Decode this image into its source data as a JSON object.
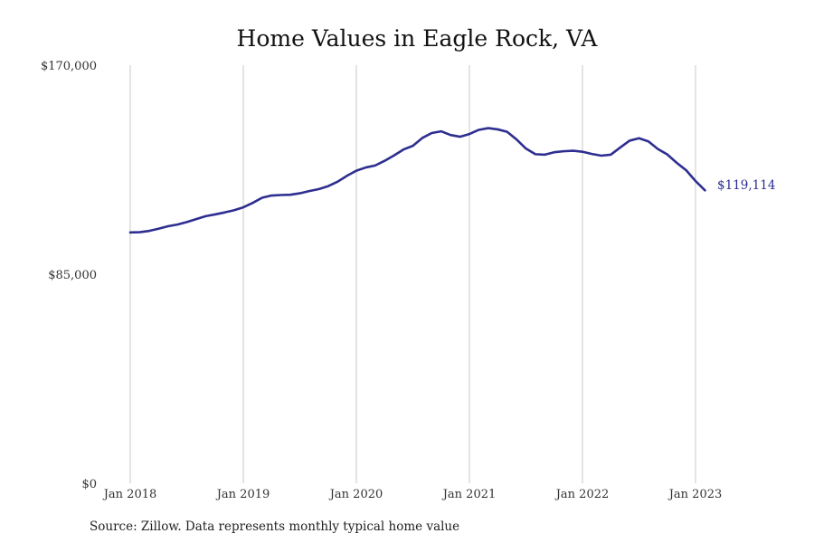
{
  "chart_data": {
    "type": "line",
    "title": "Home Values in Eagle Rock, VA",
    "xlabel": "",
    "ylabel": "",
    "x_ticks": [
      "Jan 2018",
      "Jan 2019",
      "Jan 2020",
      "Jan 2021",
      "Jan 2022",
      "Jan 2023"
    ],
    "y_ticks": [
      "$0",
      "$85,000",
      "$170,000"
    ],
    "ylim": [
      0,
      170000
    ],
    "xlim": [
      "2018-01",
      "2023-02"
    ],
    "grid": "vertical lines at January of each year",
    "series": [
      {
        "color": "#2e2e91",
        "x": [
          "2018-01",
          "2018-02",
          "2018-03",
          "2018-04",
          "2018-05",
          "2018-06",
          "2018-07",
          "2018-08",
          "2018-09",
          "2018-10",
          "2018-11",
          "2018-12",
          "2019-01",
          "2019-02",
          "2019-03",
          "2019-04",
          "2019-05",
          "2019-06",
          "2019-07",
          "2019-08",
          "2019-09",
          "2019-10",
          "2019-11",
          "2019-12",
          "2020-01",
          "2020-02",
          "2020-03",
          "2020-04",
          "2020-05",
          "2020-06",
          "2020-07",
          "2020-08",
          "2020-09",
          "2020-10",
          "2020-11",
          "2020-12",
          "2021-01",
          "2021-02",
          "2021-03",
          "2021-04",
          "2021-05",
          "2021-06",
          "2021-07",
          "2021-08",
          "2021-09",
          "2021-10",
          "2021-11",
          "2021-12",
          "2022-01",
          "2022-02",
          "2022-03",
          "2022-04",
          "2022-05",
          "2022-06",
          "2022-07",
          "2022-08",
          "2022-09",
          "2022-10",
          "2022-11",
          "2022-12",
          "2023-01",
          "2023-02"
        ],
        "values": [
          102000,
          102100,
          102600,
          103500,
          104500,
          105200,
          106200,
          107400,
          108600,
          109300,
          110100,
          111000,
          112200,
          114000,
          116100,
          117000,
          117200,
          117300,
          117900,
          118800,
          119600,
          120800,
          122600,
          125000,
          127100,
          128400,
          129200,
          131100,
          133300,
          135700,
          137200,
          140400,
          142400,
          143100,
          141600,
          140900,
          142000,
          143700,
          144400,
          143900,
          142900,
          139800,
          136100,
          133800,
          133600,
          134600,
          135000,
          135200,
          134800,
          133900,
          133200,
          133600,
          136500,
          139300,
          140300,
          139000,
          135900,
          133700,
          130300,
          127300,
          122900,
          119114
        ]
      }
    ],
    "end_label": "$119,114",
    "source": "Source: Zillow. Data represents monthly typical home value"
  },
  "colors": {
    "line": "#2e2e91",
    "end_label": "#2e2e91",
    "grid": "#c8c8c8"
  }
}
